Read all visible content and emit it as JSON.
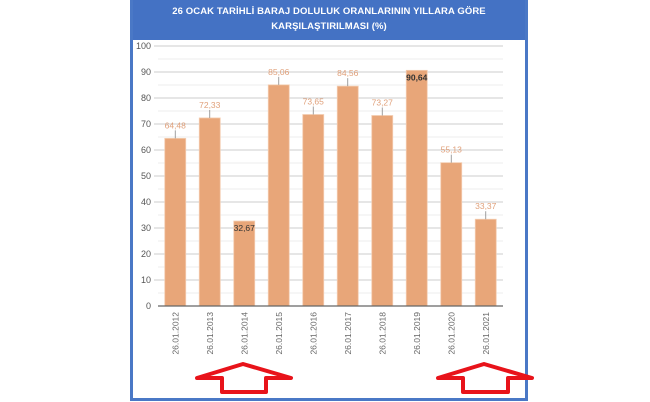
{
  "header": {
    "title_line1": "26 OCAK TARİHLİ BARAJ DOLULUK ORANLARININ YILLARA GÖRE",
    "title_line2": "KARŞILAŞTIRILMASI (%)"
  },
  "colors": {
    "frame": "#4472c4",
    "bar": "#e8a679",
    "bar_border": "#f3cdb1",
    "value_label": "#e0a07a",
    "arrow": "#e8131a",
    "grid_major": "#cccccc",
    "grid_minor": "#eeeeee"
  },
  "annotations": [
    {
      "type": "arrow-up",
      "points_to": "26.01.2014"
    },
    {
      "type": "arrow-up",
      "points_to": "26.01.2021"
    }
  ],
  "chart_data": {
    "type": "bar",
    "title": "26 OCAK TARİHLİ BARAJ DOLULUK ORANLARININ YILLARA GÖRE KARŞILAŞTIRILMASI (%)",
    "xlabel": "",
    "ylabel": "",
    "categories": [
      "26.01.2012",
      "26.01.2013",
      "26.01.2014",
      "26.01.2015",
      "26.01.2016",
      "26.01.2017",
      "26.01.2018",
      "26.01.2019",
      "26.01.2020",
      "26.01.2021"
    ],
    "values": [
      64.48,
      72.33,
      32.67,
      85.06,
      73.65,
      84.56,
      73.27,
      90.64,
      55.13,
      33.37
    ],
    "value_labels": [
      "64,48",
      "72,33",
      "32,67",
      "85,06",
      "73,65",
      "84,56",
      "73,27",
      "90,64",
      "55,13",
      "33,37"
    ],
    "yticks": [
      0,
      10,
      20,
      30,
      40,
      50,
      60,
      70,
      80,
      90,
      100
    ],
    "ylim": [
      0,
      100
    ],
    "grid": true,
    "legend": null
  }
}
